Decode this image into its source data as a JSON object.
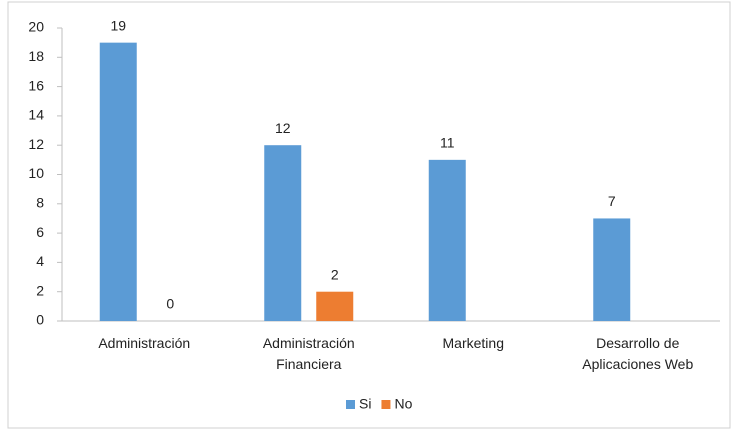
{
  "chart_data": {
    "type": "bar",
    "categories": [
      "Administración",
      "Administración\nFinanciera",
      "Marketing",
      "Desarrollo de\nAplicaciones Web"
    ],
    "series": [
      {
        "name": "Si",
        "color": "#5b9bd5",
        "values": [
          19,
          12,
          11,
          7
        ]
      },
      {
        "name": "No",
        "color": "#ed7d31",
        "values": [
          0,
          2,
          null,
          null
        ]
      }
    ],
    "ylim": [
      0,
      20
    ],
    "yticks": [
      0,
      2,
      4,
      6,
      8,
      10,
      12,
      14,
      16,
      18,
      20
    ],
    "grid": false,
    "legend": "bottom"
  }
}
